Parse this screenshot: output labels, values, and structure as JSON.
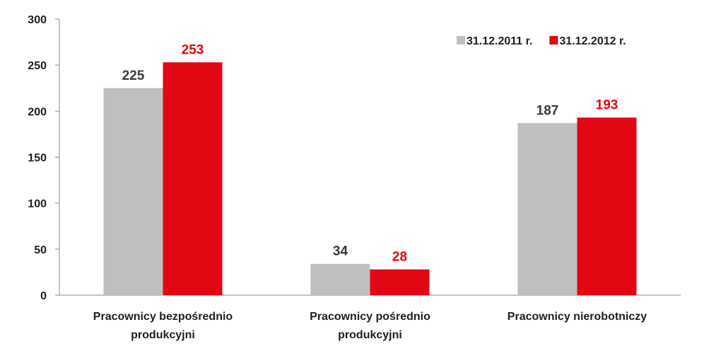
{
  "chart_data": {
    "type": "bar",
    "categories": [
      [
        "Pracownicy bezpośrednio",
        "produkcyjni"
      ],
      [
        "Pracownicy pośrednio",
        "produkcyjni"
      ],
      [
        "Pracownicy nierobotniczy"
      ]
    ],
    "series": [
      {
        "name": "31.12.2011 r.",
        "values": [
          225,
          34,
          187
        ],
        "color": "#bfbfbf",
        "label_color": "#3a3a3a"
      },
      {
        "name": "31.12.2012 r.",
        "values": [
          253,
          28,
          193
        ],
        "color": "#e30613",
        "label_color": "#e30613"
      }
    ],
    "ylim": [
      0,
      300
    ],
    "yticks": [
      0,
      50,
      100,
      150,
      200,
      250,
      300
    ],
    "grid": false,
    "legend": "top-right",
    "title": "",
    "xlabel": "",
    "ylabel": ""
  }
}
